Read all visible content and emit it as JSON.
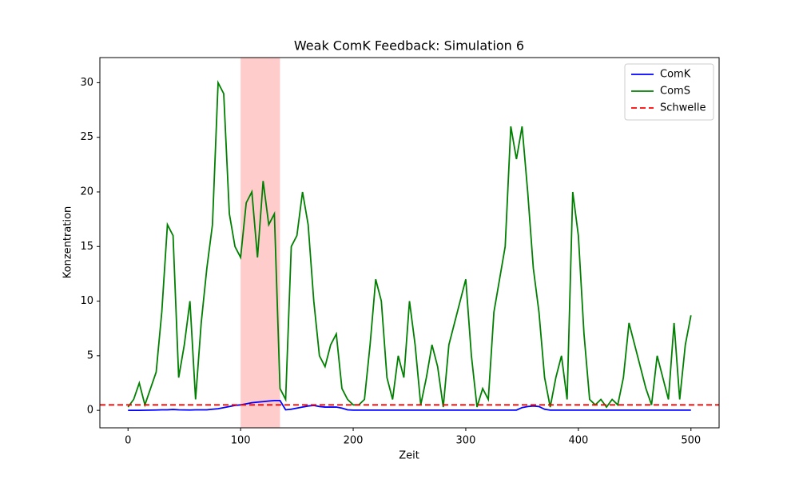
{
  "chart_data": {
    "type": "line",
    "title": "Weak ComK Feedback: Simulation 6",
    "x_label": "Zeit",
    "y_label": "Konzentration",
    "x": [
      0,
      5,
      10,
      15,
      20,
      25,
      30,
      35,
      40,
      45,
      50,
      55,
      60,
      65,
      70,
      75,
      80,
      85,
      90,
      95,
      100,
      105,
      110,
      115,
      120,
      125,
      130,
      135,
      140,
      145,
      150,
      155,
      160,
      165,
      170,
      175,
      180,
      185,
      190,
      195,
      200,
      205,
      210,
      215,
      220,
      225,
      230,
      235,
      240,
      245,
      250,
      255,
      260,
      265,
      270,
      275,
      280,
      285,
      290,
      295,
      300,
      305,
      310,
      315,
      320,
      325,
      330,
      335,
      340,
      345,
      350,
      355,
      360,
      365,
      370,
      375,
      380,
      385,
      390,
      395,
      400,
      405,
      410,
      415,
      420,
      425,
      430,
      435,
      440,
      445,
      450,
      455,
      460,
      465,
      470,
      475,
      480,
      485,
      490,
      495,
      500
    ],
    "series": [
      {
        "name": "ComK",
        "color": "#0000ff",
        "values": [
          0,
          0,
          0,
          0.01,
          0.02,
          0.03,
          0.05,
          0.05,
          0.08,
          0.05,
          0.04,
          0.03,
          0.05,
          0.05,
          0.05,
          0.1,
          0.15,
          0.25,
          0.35,
          0.45,
          0.5,
          0.6,
          0.7,
          0.75,
          0.8,
          0.85,
          0.9,
          0.9,
          0.05,
          0.1,
          0.2,
          0.3,
          0.4,
          0.45,
          0.35,
          0.3,
          0.3,
          0.3,
          0.2,
          0.05,
          0.02,
          0.02,
          0.02,
          0.02,
          0.02,
          0.02,
          0.02,
          0.02,
          0.02,
          0.02,
          0.02,
          0.02,
          0.02,
          0.02,
          0.02,
          0.02,
          0.02,
          0.02,
          0.02,
          0.02,
          0.02,
          0.02,
          0.02,
          0.02,
          0.02,
          0.02,
          0.02,
          0.02,
          0.02,
          0.02,
          0.25,
          0.35,
          0.4,
          0.35,
          0.1,
          0.02,
          0.02,
          0.02,
          0.02,
          0.02,
          0.02,
          0.02,
          0.02,
          0.02,
          0.02,
          0.02,
          0.02,
          0.02,
          0.02,
          0.02,
          0.02,
          0.02,
          0.02,
          0.02,
          0.02,
          0.02,
          0.02,
          0.02,
          0.02,
          0.02,
          0.02
        ]
      },
      {
        "name": "ComS",
        "color": "#008000",
        "values": [
          0.3,
          1,
          2.5,
          0.5,
          2,
          3.5,
          9,
          17,
          16,
          3,
          6,
          10,
          1,
          8,
          13,
          17,
          30,
          29,
          18,
          15,
          14,
          19,
          20,
          14,
          21,
          17,
          18,
          2,
          1,
          15,
          16,
          20,
          17,
          10,
          5,
          4,
          6,
          7,
          2,
          1,
          0.5,
          0.5,
          1,
          6,
          12,
          10,
          3,
          1,
          5,
          3,
          10,
          6,
          0.5,
          3,
          6,
          4,
          0.3,
          6,
          8,
          10,
          12,
          5,
          0.3,
          2,
          1,
          9,
          12,
          15,
          26,
          23,
          26,
          20,
          13,
          9,
          3,
          0.3,
          3,
          5,
          1,
          20,
          16,
          7,
          1,
          0.5,
          1,
          0.3,
          1,
          0.5,
          3,
          8,
          6,
          4,
          2,
          0.5,
          5,
          3,
          1,
          8,
          1,
          6,
          8.7
        ]
      }
    ],
    "threshold": {
      "name": "Schwelle",
      "value": 0.5,
      "color": "#ff0000"
    },
    "shaded_span": {
      "range": [
        100,
        135
      ],
      "color": "#ff9999"
    },
    "xlim": [
      -25,
      525
    ],
    "ylim": [
      -1.6,
      32.3
    ],
    "xticks": [
      0,
      100,
      200,
      300,
      400,
      500
    ],
    "yticks": [
      0,
      5,
      10,
      15,
      20,
      25,
      30
    ],
    "legend": "upper right"
  }
}
